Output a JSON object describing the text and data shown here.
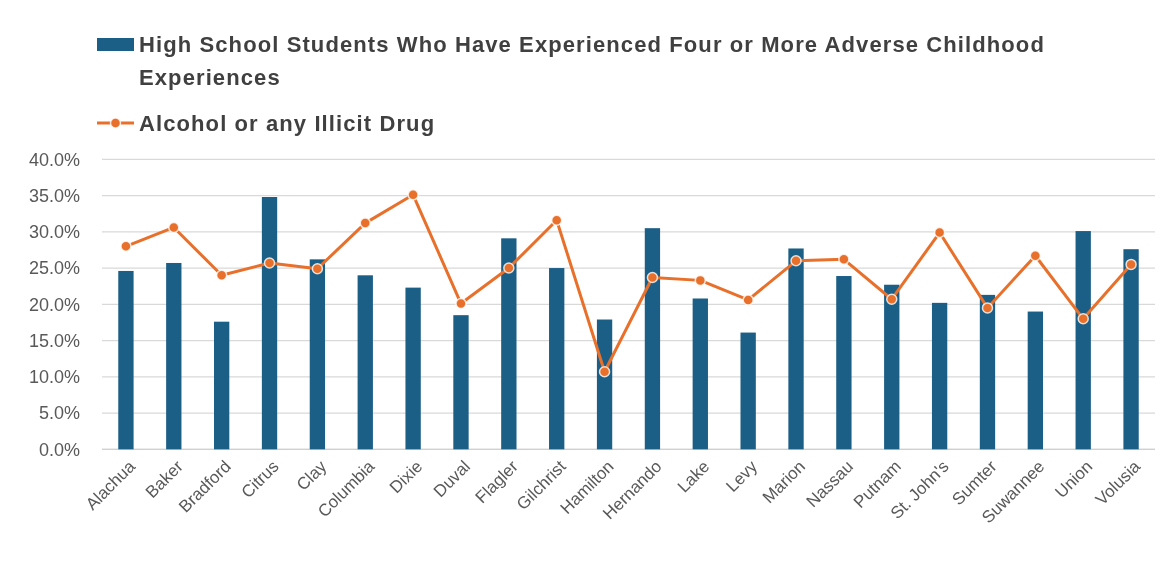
{
  "chart_data": {
    "type": "bar",
    "categories": [
      "Alachua",
      "Baker",
      "Bradford",
      "Citrus",
      "Clay",
      "Columbia",
      "Dixie",
      "Duval",
      "Flagler",
      "Gilchrist",
      "Hamilton",
      "Hernando",
      "Lake",
      "Levy",
      "Marion",
      "Nassau",
      "Putnam",
      "St. John's",
      "Sumter",
      "Suwannee",
      "Union",
      "Volusia"
    ],
    "series": [
      {
        "name": "High School Students Who Have Experienced Four or More Adverse Childhood Experiences",
        "color": "#1b5e86",
        "values": [
          24.6,
          25.7,
          17.6,
          34.8,
          26.2,
          24.0,
          22.3,
          18.5,
          29.1,
          25.0,
          17.9,
          30.5,
          20.8,
          16.1,
          27.7,
          23.9,
          22.7,
          20.2,
          21.3,
          19.0,
          30.1,
          27.6
        ]
      },
      {
        "name": "Alcohol or any Illicit Drug",
        "type": "line",
        "color": "#e8702a",
        "marker": "circle",
        "values": [
          28.0,
          30.6,
          24.0,
          25.7,
          24.9,
          31.2,
          35.1,
          20.1,
          25.0,
          31.6,
          10.7,
          23.7,
          23.3,
          20.6,
          26.0,
          26.2,
          20.7,
          29.9,
          19.5,
          26.7,
          18.0,
          25.5
        ]
      }
    ],
    "ylim": [
      0,
      40
    ],
    "yticks": [
      {
        "value": 0,
        "label": "0.0%"
      },
      {
        "value": 5,
        "label": "5.0%"
      },
      {
        "value": 10,
        "label": "10.0%"
      },
      {
        "value": 15,
        "label": "15.0%"
      },
      {
        "value": 20,
        "label": "20.0%"
      },
      {
        "value": 25,
        "label": "25.0%"
      },
      {
        "value": 30,
        "label": "30.0%"
      },
      {
        "value": 35,
        "label": "35.0%"
      },
      {
        "value": 40,
        "label": "40.0%"
      }
    ],
    "grid": "y",
    "legend": "top"
  }
}
